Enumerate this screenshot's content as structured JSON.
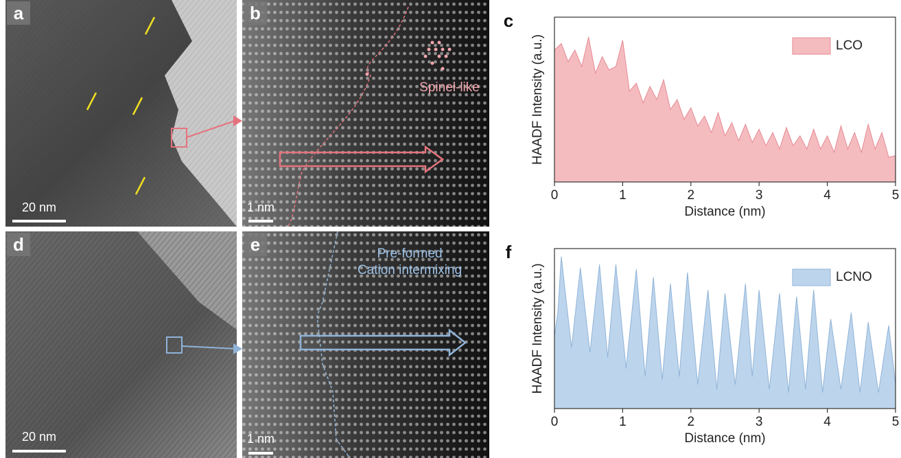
{
  "panels": [
    {
      "label": "a",
      "scale_bar": "20 nm"
    },
    {
      "label": "b",
      "scale_bar": "1 nm",
      "annotation": [
        "Spinel-like"
      ]
    },
    {
      "label": "d",
      "scale_bar": "20 nm"
    },
    {
      "label": "e",
      "scale_bar": "1 nm",
      "annotation": [
        "Pre-formed",
        "Cation intermixing"
      ]
    }
  ],
  "chart_data": [
    {
      "type": "area",
      "panel_label": "c",
      "xlabel": "Distance (nm)",
      "ylabel": "HAADF Intensity (a.u.)",
      "xlim": [
        0,
        5
      ],
      "xticks": [
        0,
        1,
        2,
        3,
        4,
        5
      ],
      "ylim": [
        0,
        1
      ],
      "legend": "upper-right",
      "x": [
        0,
        0.1,
        0.2,
        0.3,
        0.4,
        0.5,
        0.6,
        0.7,
        0.8,
        0.9,
        1.0,
        1.1,
        1.2,
        1.3,
        1.4,
        1.5,
        1.6,
        1.7,
        1.8,
        1.9,
        2.0,
        2.1,
        2.2,
        2.3,
        2.4,
        2.5,
        2.6,
        2.7,
        2.8,
        2.9,
        3.0,
        3.1,
        3.2,
        3.3,
        3.4,
        3.5,
        3.6,
        3.7,
        3.8,
        3.9,
        4.0,
        4.1,
        4.2,
        4.3,
        4.4,
        4.5,
        4.6,
        4.7,
        4.8,
        4.9,
        5.0
      ],
      "series": [
        {
          "name": "LCO",
          "color": "#f5bcc0",
          "edge": "#e58a93",
          "values": [
            0.8,
            0.84,
            0.73,
            0.8,
            0.7,
            0.88,
            0.66,
            0.76,
            0.68,
            0.7,
            0.86,
            0.55,
            0.6,
            0.48,
            0.58,
            0.5,
            0.62,
            0.44,
            0.5,
            0.38,
            0.45,
            0.34,
            0.4,
            0.3,
            0.42,
            0.28,
            0.36,
            0.25,
            0.35,
            0.24,
            0.32,
            0.22,
            0.3,
            0.2,
            0.33,
            0.22,
            0.28,
            0.2,
            0.32,
            0.2,
            0.28,
            0.18,
            0.34,
            0.2,
            0.3,
            0.18,
            0.35,
            0.2,
            0.3,
            0.15,
            0.16
          ]
        }
      ]
    },
    {
      "type": "area",
      "panel_label": "f",
      "xlabel": "Distance (nm)",
      "ylabel": "HAADF Intensity (a.u.)",
      "xlim": [
        0,
        5
      ],
      "xticks": [
        0,
        1,
        2,
        3,
        4,
        5
      ],
      "ylim": [
        0,
        1
      ],
      "legend": "upper-right",
      "x": [
        0,
        0.05,
        0.1,
        0.25,
        0.38,
        0.52,
        0.66,
        0.78,
        0.9,
        1.05,
        1.2,
        1.33,
        1.45,
        1.58,
        1.7,
        1.83,
        1.95,
        2.1,
        2.25,
        2.38,
        2.5,
        2.65,
        2.8,
        2.9,
        3.0,
        3.15,
        3.3,
        3.43,
        3.55,
        3.68,
        3.8,
        3.93,
        4.05,
        4.2,
        4.35,
        4.48,
        4.6,
        4.75,
        4.9,
        5.0
      ],
      "series": [
        {
          "name": "LCNO",
          "color": "#bdd5ec",
          "edge": "#8fb3d8",
          "values": [
            0.45,
            0.6,
            0.95,
            0.38,
            0.88,
            0.35,
            0.9,
            0.32,
            0.9,
            0.25,
            0.87,
            0.2,
            0.82,
            0.18,
            0.78,
            0.2,
            0.85,
            0.15,
            0.74,
            0.12,
            0.72,
            0.15,
            0.78,
            0.2,
            0.74,
            0.12,
            0.72,
            0.1,
            0.7,
            0.12,
            0.74,
            0.1,
            0.56,
            0.12,
            0.6,
            0.1,
            0.54,
            0.1,
            0.52,
            0.15
          ]
        }
      ]
    }
  ]
}
